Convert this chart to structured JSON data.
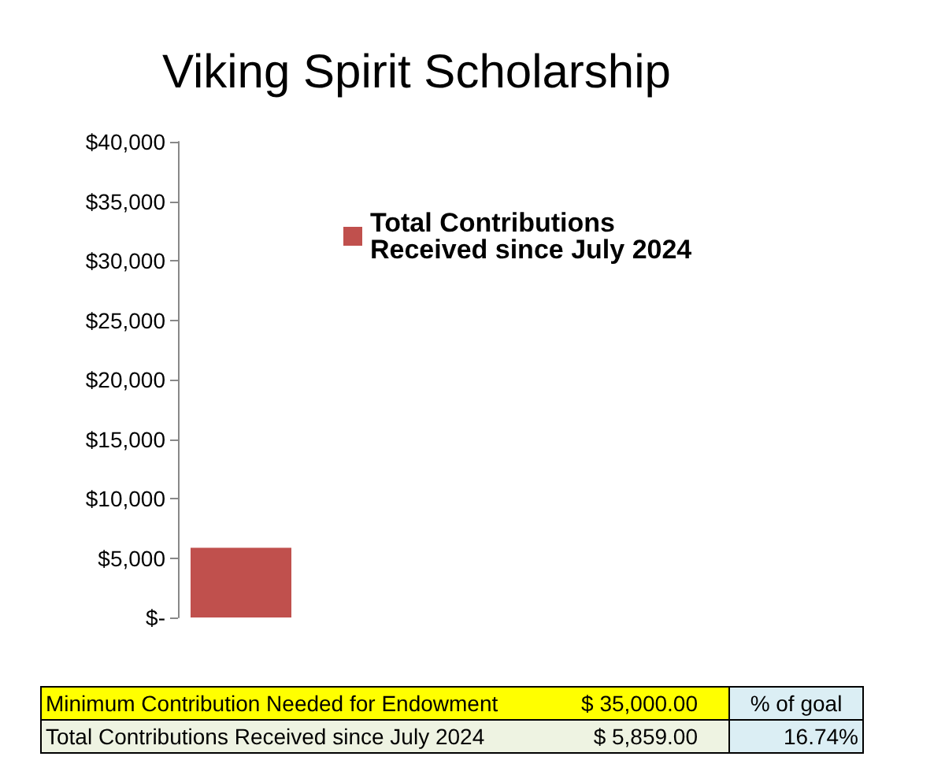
{
  "chart_data": {
    "type": "bar",
    "title": "Viking Spirit Scholarship",
    "categories": [
      null
    ],
    "series": [
      {
        "name": "Total Contributions Received since July 2024",
        "color": "#c0504d",
        "values": [
          5859
        ]
      }
    ],
    "ylim": [
      0,
      40000
    ],
    "yticks": [
      {
        "value": 0,
        "label": "$-"
      },
      {
        "value": 5000,
        "label": "$5,000"
      },
      {
        "value": 10000,
        "label": "$10,000"
      },
      {
        "value": 15000,
        "label": "$15,000"
      },
      {
        "value": 20000,
        "label": "$20,000"
      },
      {
        "value": 25000,
        "label": "$25,000"
      },
      {
        "value": 30000,
        "label": "$30,000"
      },
      {
        "value": 35000,
        "label": "$35,000"
      },
      {
        "value": 40000,
        "label": "$40,000"
      }
    ],
    "grid": false,
    "legend": "right",
    "annotations": [
      "Minimum Contribution Needed for Endowment",
      "$ 35,000.00",
      "% of goal",
      "Total Contributions Received since July 2024",
      "$ 5,859.00",
      "16.74%"
    ]
  }
}
